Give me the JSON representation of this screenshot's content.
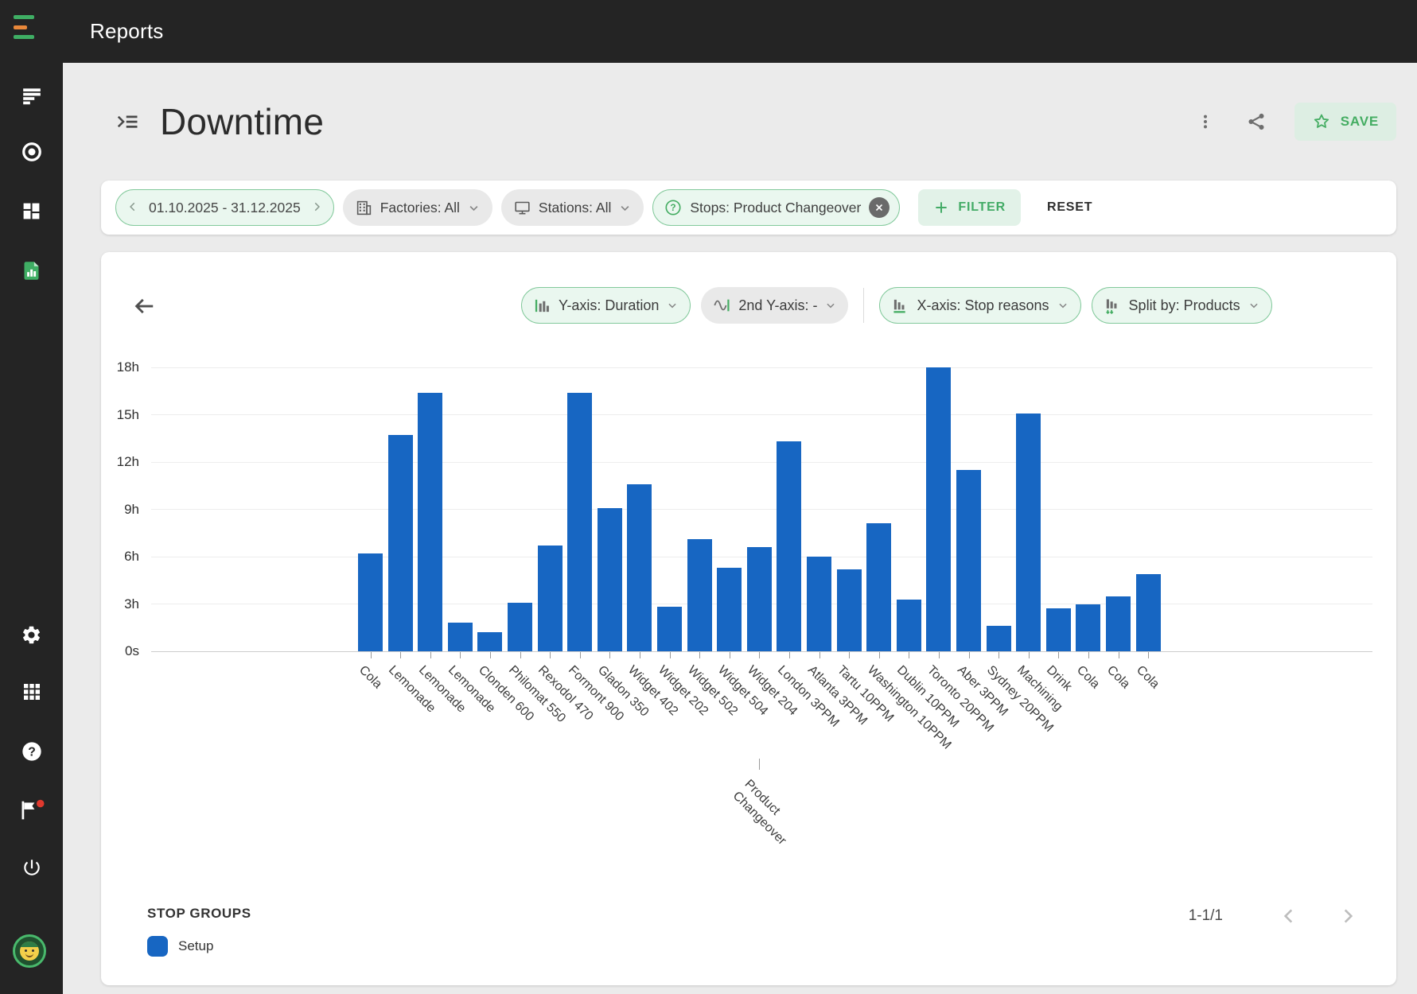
{
  "header": {
    "title": "Reports"
  },
  "sidebar": {
    "icons": [
      "menu-logo",
      "report-list",
      "record",
      "dashboard",
      "reports-active",
      "settings-gear",
      "apps-grid",
      "help",
      "flag-notification",
      "power",
      "user-avatar"
    ]
  },
  "page": {
    "title": "Downtime",
    "save_label": "SAVE"
  },
  "filters": {
    "date_range": "01.10.2025 - 31.12.2025",
    "factories": "Factories: All",
    "stations": "Stations: All",
    "stops": "Stops: Product Changeover",
    "filter_label": "FILTER",
    "reset_label": "RESET"
  },
  "controls": {
    "y_axis": "Y-axis: Duration",
    "second_y_axis": "2nd Y-axis: -",
    "x_axis": "X-axis: Stop reasons",
    "split_by": "Split by: Products"
  },
  "chart_data": {
    "type": "bar",
    "title": "",
    "xlabel": "",
    "ylabel": "Duration",
    "ylim": [
      0,
      18
    ],
    "grid": true,
    "bar_color": "#1766C2",
    "y_ticks": [
      {
        "label": "0s",
        "v": 0
      },
      {
        "label": "3h",
        "v": 3
      },
      {
        "label": "6h",
        "v": 6
      },
      {
        "label": "9h",
        "v": 9
      },
      {
        "label": "12h",
        "v": 12
      },
      {
        "label": "15h",
        "v": 15
      },
      {
        "label": "18h",
        "v": 18
      }
    ],
    "categories": [
      "Cola",
      "Lemonade",
      "Lemonade",
      "Lemonade",
      "Clonden 600",
      "Philomat 550",
      "Rexodol 470",
      "Formont 900",
      "Gladon 350",
      "Widget 402",
      "Widget 202",
      "Widget 502",
      "Widget 504",
      "Widget 204",
      "London 3PPM",
      "Atlanta 3PPM",
      "Tartu 10PPM",
      "Washington 10PPM",
      "Dublin 10PPM",
      "Toronto 20PPM",
      "Aber 3PPM",
      "Sydney 20PPM",
      "Machining",
      "Drink",
      "Cola",
      "Cola",
      "Cola"
    ],
    "values": [
      6.2,
      13.7,
      16.4,
      1.8,
      1.2,
      3.1,
      6.7,
      16.4,
      9.1,
      10.6,
      2.8,
      7.1,
      5.3,
      6.6,
      13.3,
      6.0,
      5.2,
      8.1,
      3.3,
      18.0,
      11.5,
      1.6,
      15.1,
      2.7,
      3.0,
      3.5,
      4.9
    ],
    "group_label": "Product Changeover",
    "series_hours_unit": "h"
  },
  "legend": {
    "section_title": "STOP GROUPS",
    "items": [
      {
        "label": "Setup",
        "color": "#1766C2"
      }
    ],
    "pagination": "1-1/1"
  }
}
